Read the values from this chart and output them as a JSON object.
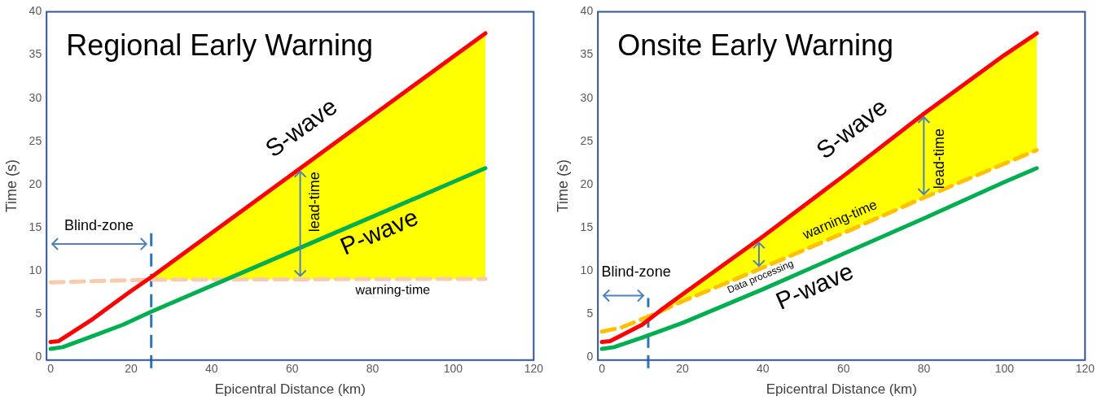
{
  "chart_data": [
    {
      "type": "line",
      "title": "Regional Early Warning",
      "xlabel": "Epicentral Distance (km)",
      "ylabel": "Time (s)",
      "xlim": [
        -1,
        120
      ],
      "ylim": [
        -0.3,
        40
      ],
      "xticks": [
        0,
        20,
        40,
        60,
        80,
        100,
        120
      ],
      "yticks": [
        0,
        5,
        10,
        15,
        20,
        25,
        30,
        35,
        40
      ],
      "marker": "none",
      "series": [
        {
          "name": "S-wave",
          "color": "#ff0000",
          "x": [
            0,
            2,
            5,
            10,
            15,
            20,
            25,
            40,
            60,
            80,
            100,
            108
          ],
          "values": [
            1.8,
            1.9,
            2.8,
            4.3,
            6.0,
            7.7,
            9.3,
            14.4,
            21.2,
            28.0,
            34.8,
            37.5
          ]
        },
        {
          "name": "P-wave",
          "color": "#00b050",
          "x": [
            0,
            3,
            10,
            18,
            25,
            40,
            60,
            80,
            100,
            108
          ],
          "values": [
            1.0,
            1.2,
            2.4,
            3.8,
            5.3,
            8.3,
            12.3,
            16.3,
            20.3,
            21.9
          ]
        },
        {
          "name": "warning-time",
          "color": "#f8cbad",
          "line_style": "dashed",
          "x": [
            0,
            24,
            108
          ],
          "values": [
            8.7,
            9.0,
            9.1
          ]
        },
        {
          "type": "area",
          "color": "#ffff00",
          "x": [
            24,
            40,
            60,
            80,
            100,
            108
          ],
          "values": [
            9.0,
            14.4,
            21.2,
            28.0,
            34.8,
            37.5
          ]
        }
      ],
      "ref_lines": [
        {
          "axis": "x",
          "value": 25,
          "color": "#2e75b6",
          "line_style": "dashed"
        }
      ],
      "annotations": [
        "Blind-zone",
        {
          "text": "lead-time",
          "x": 62,
          "y": 21.9
        }
      ]
    },
    {
      "type": "line",
      "title": "Onsite Early Warning",
      "xlabel": "Epicentral Distance (km)",
      "ylabel": "Time (s)",
      "xlim": [
        -1,
        120
      ],
      "ylim": [
        -0.3,
        40
      ],
      "xticks": [
        0,
        20,
        40,
        60,
        80,
        100,
        120
      ],
      "yticks": [
        0,
        5,
        10,
        15,
        20,
        25,
        30,
        35,
        40
      ],
      "marker": "none",
      "series": [
        {
          "name": "S-wave",
          "color": "#ff0000",
          "x": [
            0,
            2,
            5,
            10,
            15,
            20,
            40,
            60,
            80,
            100,
            108
          ],
          "values": [
            1.8,
            1.9,
            2.6,
            3.8,
            5.6,
            7.3,
            14.0,
            21.0,
            28.2,
            35.0,
            37.5
          ]
        },
        {
          "name": "P-wave",
          "color": "#00b050",
          "x": [
            0,
            3,
            10,
            20,
            40,
            60,
            80,
            100,
            108
          ],
          "values": [
            1.0,
            1.2,
            2.3,
            4.0,
            7.9,
            12.0,
            16.1,
            20.3,
            21.9
          ]
        },
        {
          "name": "warning-time",
          "color": "#ffc000",
          "line_style": "dashed",
          "x": [
            0,
            5,
            14,
            20,
            40,
            60,
            80,
            108
          ],
          "values": [
            3.0,
            3.5,
            5.2,
            6.5,
            10.4,
            14.4,
            18.5,
            24.0
          ]
        },
        {
          "type": "area",
          "color": "#ffff00",
          "x": [
            14,
            20,
            40,
            60,
            80,
            100,
            108
          ],
          "values": [
            5.2,
            7.3,
            14.0,
            21.0,
            28.2,
            35.0,
            37.5
          ]
        }
      ],
      "ref_lines": [
        {
          "axis": "x",
          "value": 11.5,
          "color": "#2e75b6",
          "line_style": "dashed"
        }
      ],
      "annotations": [
        "Blind-zone",
        "lead-time",
        "Data processing"
      ]
    }
  ]
}
